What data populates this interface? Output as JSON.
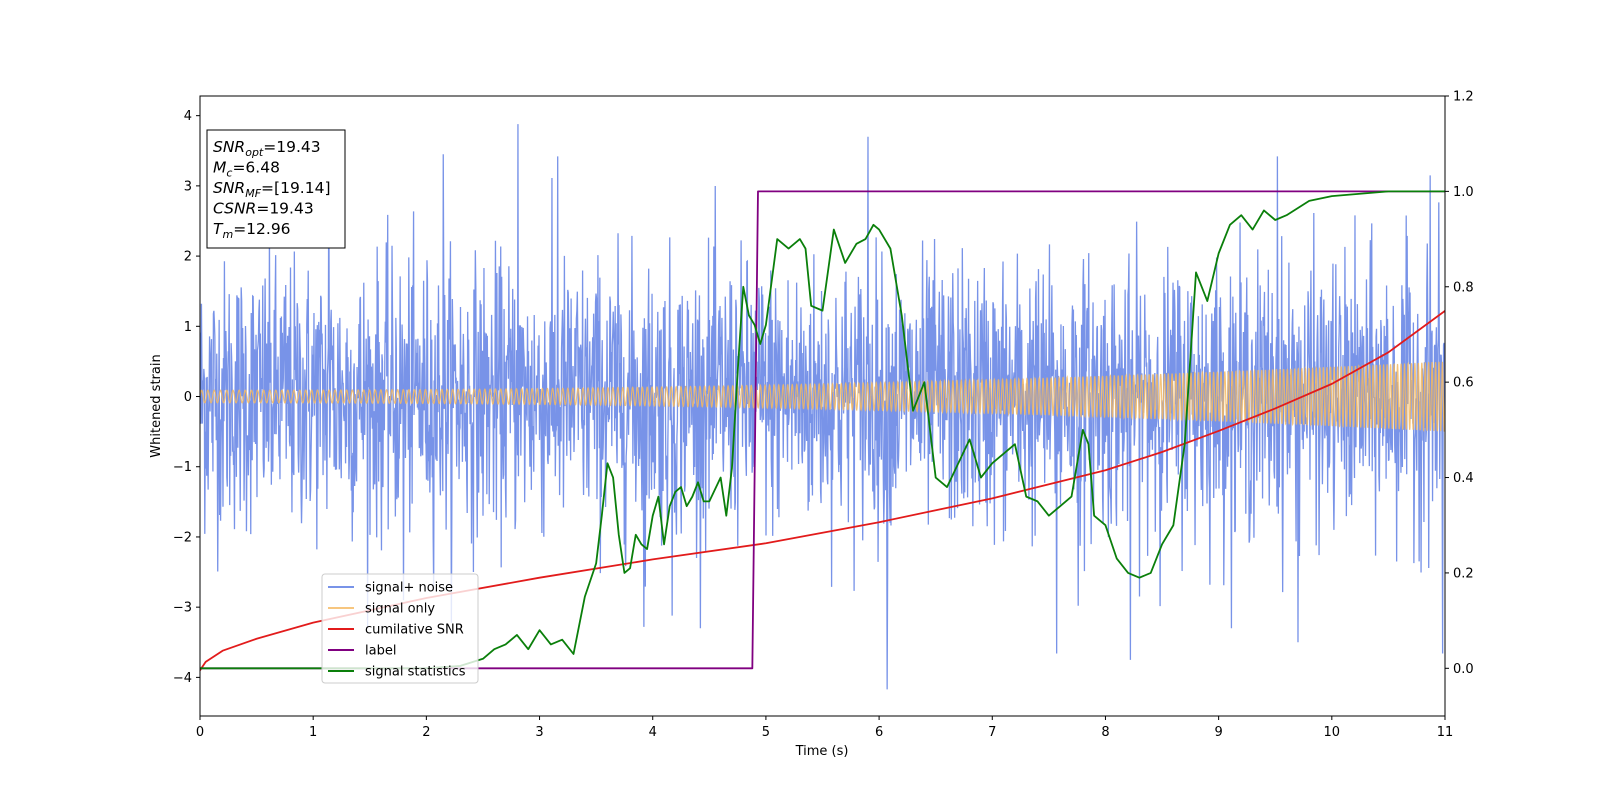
{
  "chart_data": {
    "type": "line",
    "xlabel": "Time (s)",
    "ylabel": "Whitened strain",
    "xlim": [
      0,
      11
    ],
    "ylim": [
      -4.55,
      4.28
    ],
    "y2lim": [
      -0.1,
      1.2
    ],
    "x_ticks": [
      0,
      1,
      2,
      3,
      4,
      5,
      6,
      7,
      8,
      9,
      10,
      11
    ],
    "y_ticks": [
      -4,
      -3,
      -2,
      -1,
      0,
      1,
      2,
      3,
      4
    ],
    "y2_ticks": [
      0.0,
      0.2,
      0.4,
      0.6,
      0.8,
      1.0,
      1.2
    ],
    "grid": false,
    "legend_position": "lower-left",
    "info_box": {
      "position": "top-left",
      "lines": [
        {
          "main": "SNR",
          "sub": "opt",
          "rest": "=19.43"
        },
        {
          "main": "M",
          "sub": "c",
          "rest": "=6.48"
        },
        {
          "main": "SNR",
          "sub": "MF",
          "rest": "=[19.14]"
        },
        {
          "main": "CSNR",
          "sub": "",
          "rest": "=19.43"
        },
        {
          "main": "T",
          "sub": "m",
          "rest": "=12.96"
        }
      ]
    },
    "series": [
      {
        "name": "signal+ noise",
        "axis": "left",
        "color": "#7893e8",
        "kind": "noise",
        "noise_std": 0.95,
        "spike_points": [
          [
            1.14,
            3.38
          ],
          [
            2.15,
            3.45
          ],
          [
            2.81,
            3.88
          ],
          [
            3.16,
            3.42
          ],
          [
            3.92,
            -3.28
          ],
          [
            4.17,
            -3.12
          ],
          [
            5.9,
            3.7
          ],
          [
            6.07,
            -4.17
          ],
          [
            7.57,
            -3.66
          ],
          [
            8.22,
            -3.75
          ],
          [
            9.52,
            3.42
          ],
          [
            10.87,
            3.15
          ],
          [
            10.98,
            -3.66
          ],
          [
            1.8,
            -2.9
          ],
          [
            7.76,
            -2.98
          ],
          [
            9.7,
            -3.5
          ]
        ]
      },
      {
        "name": "signal only",
        "axis": "left",
        "color": "#f5b85f",
        "kind": "chirp",
        "amplitude_start": 0.09,
        "amplitude_end": 0.5,
        "cycles": 280
      },
      {
        "name": "cumilative SNR",
        "axis": "left",
        "color": "#e21b1b",
        "kind": "line",
        "x": [
          0,
          0.05,
          0.2,
          0.5,
          1,
          2,
          3,
          4,
          5,
          6,
          7,
          8,
          8.5,
          9,
          9.5,
          10,
          10.5,
          11
        ],
        "y": [
          -3.9,
          -3.78,
          -3.62,
          -3.45,
          -3.22,
          -2.87,
          -2.58,
          -2.32,
          -2.09,
          -1.79,
          -1.45,
          -1.05,
          -0.79,
          -0.49,
          -0.17,
          0.18,
          0.63,
          1.22
        ]
      },
      {
        "name": "label",
        "axis": "right",
        "color": "#800080",
        "kind": "line",
        "x": [
          0,
          4.88,
          4.93,
          11
        ],
        "y": [
          0,
          0,
          1,
          1
        ]
      },
      {
        "name": "signal statistics",
        "axis": "right",
        "color": "#0a7f0a",
        "kind": "line",
        "x": [
          0,
          1,
          2,
          2.3,
          2.5,
          2.6,
          2.7,
          2.8,
          2.9,
          3.0,
          3.1,
          3.2,
          3.3,
          3.4,
          3.5,
          3.55,
          3.6,
          3.65,
          3.7,
          3.75,
          3.8,
          3.85,
          3.9,
          3.95,
          4.0,
          4.05,
          4.1,
          4.15,
          4.2,
          4.25,
          4.3,
          4.35,
          4.4,
          4.45,
          4.5,
          4.6,
          4.65,
          4.7,
          4.75,
          4.8,
          4.85,
          4.9,
          4.95,
          5.0,
          5.1,
          5.2,
          5.3,
          5.35,
          5.4,
          5.5,
          5.6,
          5.7,
          5.8,
          5.88,
          5.95,
          6.0,
          6.1,
          6.2,
          6.3,
          6.4,
          6.5,
          6.6,
          6.7,
          6.8,
          6.9,
          7.0,
          7.1,
          7.2,
          7.3,
          7.4,
          7.5,
          7.6,
          7.7,
          7.8,
          7.85,
          7.9,
          8.0,
          8.1,
          8.2,
          8.3,
          8.4,
          8.5,
          8.6,
          8.7,
          8.8,
          8.9,
          9.0,
          9.1,
          9.2,
          9.3,
          9.4,
          9.5,
          9.6,
          9.8,
          10.0,
          10.5,
          11.0
        ],
        "y": [
          0.0,
          0.0,
          0.0,
          0.005,
          0.02,
          0.04,
          0.05,
          0.07,
          0.04,
          0.08,
          0.05,
          0.06,
          0.03,
          0.15,
          0.22,
          0.32,
          0.43,
          0.4,
          0.28,
          0.2,
          0.21,
          0.28,
          0.26,
          0.25,
          0.32,
          0.36,
          0.26,
          0.34,
          0.37,
          0.38,
          0.34,
          0.36,
          0.39,
          0.35,
          0.35,
          0.4,
          0.32,
          0.42,
          0.62,
          0.8,
          0.74,
          0.72,
          0.68,
          0.72,
          0.9,
          0.88,
          0.9,
          0.88,
          0.76,
          0.75,
          0.92,
          0.85,
          0.89,
          0.9,
          0.93,
          0.92,
          0.88,
          0.74,
          0.54,
          0.6,
          0.4,
          0.38,
          0.43,
          0.48,
          0.4,
          0.43,
          0.45,
          0.47,
          0.36,
          0.35,
          0.32,
          0.34,
          0.36,
          0.5,
          0.47,
          0.32,
          0.3,
          0.23,
          0.2,
          0.19,
          0.2,
          0.26,
          0.3,
          0.47,
          0.83,
          0.77,
          0.87,
          0.93,
          0.95,
          0.92,
          0.96,
          0.94,
          0.95,
          0.98,
          0.99,
          1.0,
          1.0
        ]
      }
    ]
  }
}
